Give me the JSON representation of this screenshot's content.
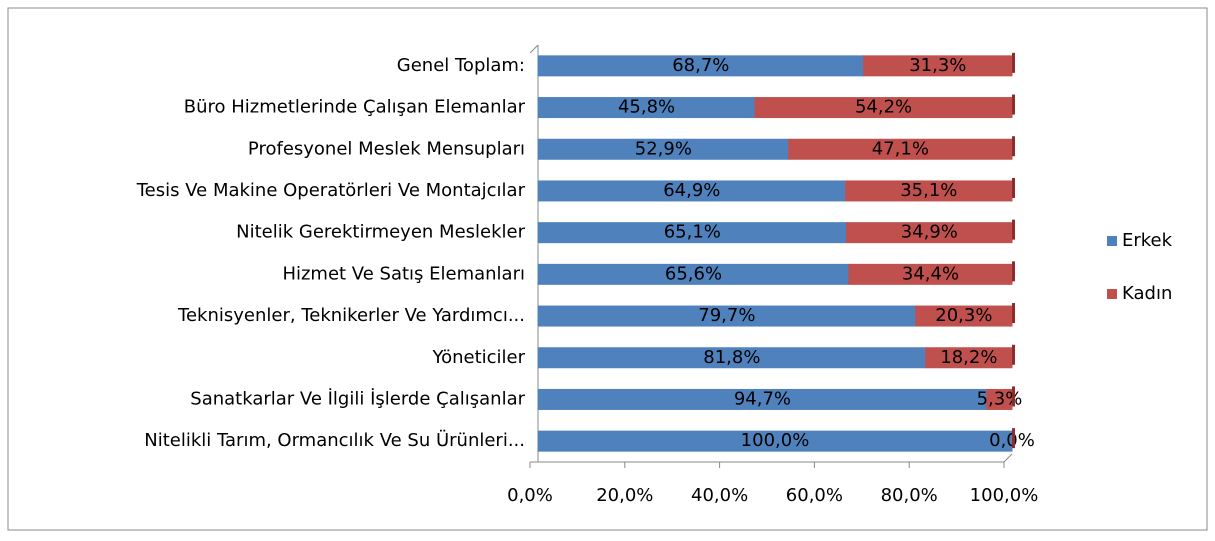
{
  "chart_data": {
    "type": "stacked-bar-horizontal",
    "categories": [
      "Genel Toplam:",
      "Büro Hizmetlerinde Çalışan Elemanlar",
      "Profesyonel Meslek Mensupları",
      "Tesis Ve Makine Operatörleri Ve Montajcılar",
      "Nitelik Gerektirmeyen Meslekler",
      "Hizmet Ve Satış Elemanları",
      "Teknisyenler, Teknikerler Ve Yardımcı...",
      "Yöneticiler",
      "Sanatkarlar Ve İlgili İşlerde Çalışanlar",
      "Nitelikli Tarım, Ormancılık Ve Su Ürünleri..."
    ],
    "series": [
      {
        "name": "Erkek",
        "color": "#4f81bd",
        "values": [
          68.7,
          45.8,
          52.9,
          64.9,
          65.1,
          65.6,
          79.7,
          81.8,
          94.7,
          100.0
        ],
        "value_labels": [
          "68,7%",
          "45,8%",
          "52,9%",
          "64,9%",
          "65,1%",
          "65,6%",
          "79,7%",
          "81,8%",
          "94,7%",
          "100,0%"
        ]
      },
      {
        "name": "Kadın",
        "color": "#c0504d",
        "values": [
          31.3,
          54.2,
          47.1,
          35.1,
          34.9,
          34.4,
          20.3,
          18.2,
          5.3,
          0.0
        ],
        "value_labels": [
          "31,3%",
          "54,2%",
          "47,1%",
          "35,1%",
          "34,9%",
          "34,4%",
          "20,3%",
          "18,2%",
          "5,3%",
          "0,0%"
        ]
      }
    ],
    "xlim": [
      0,
      100
    ],
    "xticks": [
      {
        "value": 0,
        "label": "0,0%"
      },
      {
        "value": 20,
        "label": "20,0%"
      },
      {
        "value": 40,
        "label": "40,0%"
      },
      {
        "value": 60,
        "label": "60,0%"
      },
      {
        "value": 80,
        "label": "80,0%"
      },
      {
        "value": 100,
        "label": "100,0%"
      }
    ],
    "legend": "right"
  }
}
